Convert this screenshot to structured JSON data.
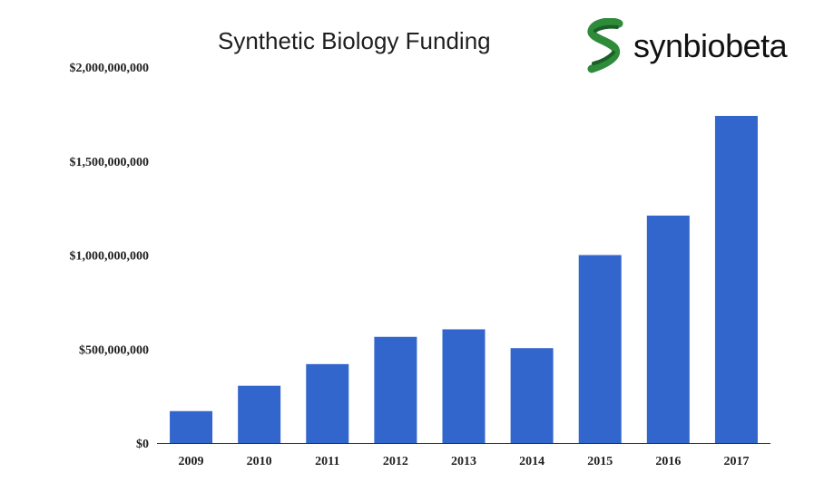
{
  "brand": {
    "name": "synbiobeta",
    "icon": "helix-s-icon",
    "colors": [
      "#2e8b3a",
      "#1c5e28"
    ]
  },
  "chart_data": {
    "type": "bar",
    "title": "Synthetic Biology Funding",
    "xlabel": "",
    "ylabel": "",
    "categories": [
      "2009",
      "2010",
      "2011",
      "2012",
      "2013",
      "2014",
      "2015",
      "2016",
      "2017"
    ],
    "values": [
      170000000,
      305000000,
      420000000,
      565000000,
      605000000,
      505000000,
      1000000000,
      1210000000,
      1740000000
    ],
    "ylim": [
      0,
      2000000000
    ],
    "yticks": [
      0,
      500000000,
      1000000000,
      1500000000,
      2000000000
    ],
    "ytick_labels": [
      "$0",
      "$500,000,000",
      "$1,000,000,000",
      "$1,500,000,000",
      "$2,000,000,000"
    ],
    "grid": false,
    "legend": "none",
    "bar_color": "#3366cc"
  }
}
